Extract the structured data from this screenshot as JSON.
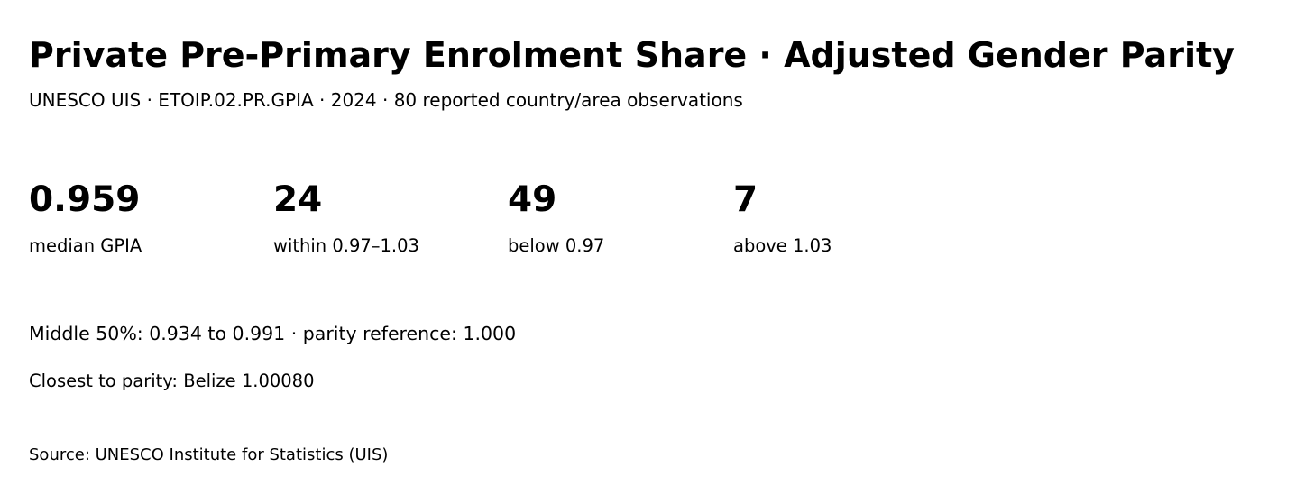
{
  "header": {
    "title": "Private Pre-Primary Enrolment Share · Adjusted Gender Parity",
    "subtitle": "UNESCO UIS · ETOIP.02.PR.GPIA · 2024 · 80 reported country/area observations"
  },
  "stats": [
    {
      "value": 0.959,
      "label": "median GPIA"
    },
    {
      "value": 24,
      "label": "within 0.97–1.03"
    },
    {
      "value": 49,
      "label": "below 0.97"
    },
    {
      "value": 7,
      "label": "above 1.03"
    }
  ],
  "notes": [
    "Middle 50%: 0.934 to 0.991 · parity reference: 1.000",
    "Closest to parity: Belize 1.00080"
  ],
  "source": "Source: UNESCO Institute for Statistics (UIS)"
}
